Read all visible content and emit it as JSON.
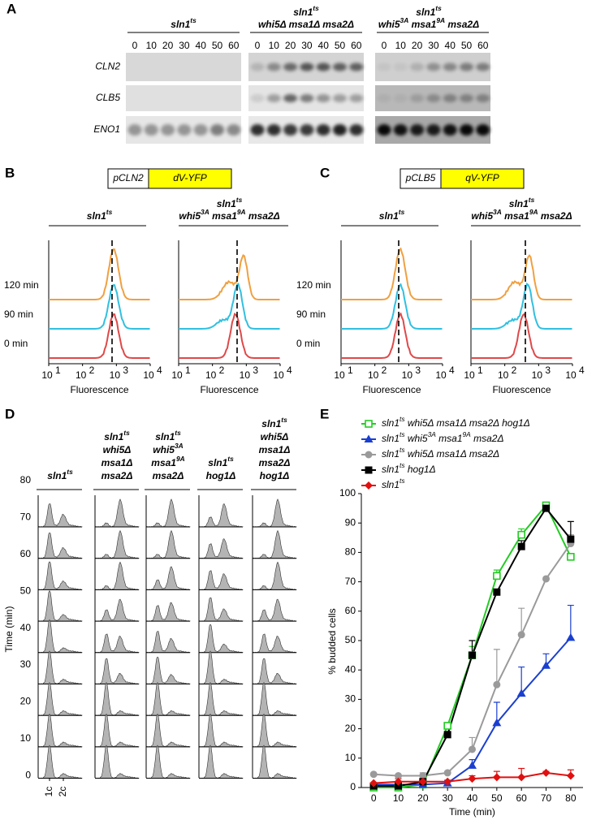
{
  "panel_a": {
    "letter": "A",
    "groups": [
      {
        "title": [
          "sln1ts"
        ],
        "times": [
          0,
          10,
          20,
          30,
          40,
          50,
          60
        ]
      },
      {
        "title": [
          "sln1ts",
          "whi5Δ msa1Δ msa2Δ"
        ],
        "times": [
          0,
          10,
          20,
          30,
          40,
          50,
          60
        ]
      },
      {
        "title": [
          "sln1ts",
          "whi53A msa19A msa2Δ"
        ],
        "times": [
          0,
          10,
          20,
          30,
          40,
          50,
          60
        ]
      }
    ],
    "rows": [
      "CLN2",
      "CLB5",
      "ENO1"
    ]
  },
  "panel_b": {
    "letter": "B",
    "promoter": "pCLN2",
    "reporter": "dV-YFP",
    "plots": [
      {
        "title": [
          "sln1ts"
        ]
      },
      {
        "title": [
          "sln1ts",
          "whi53A msa19A msa2Δ"
        ]
      }
    ],
    "time_labels": [
      "120 min",
      "90 min",
      "0 min"
    ],
    "x_ticks": [
      {
        "base": "10",
        "exp": "1"
      },
      {
        "base": "10",
        "exp": "2"
      },
      {
        "base": "10",
        "exp": "3"
      },
      {
        "base": "10",
        "exp": "4"
      }
    ],
    "x_label": "Fluorescence"
  },
  "panel_c": {
    "letter": "C",
    "promoter": "pCLB5",
    "reporter": "qV-YFP",
    "plots": [
      {
        "title": [
          "sln1ts"
        ]
      },
      {
        "title": [
          "sln1ts",
          "whi53A msa19A msa2Δ"
        ]
      }
    ],
    "time_labels": [
      "120 min",
      "90 min",
      "0 min"
    ],
    "x_ticks": [
      {
        "base": "10",
        "exp": "1"
      },
      {
        "base": "10",
        "exp": "2"
      },
      {
        "base": "10",
        "exp": "3"
      },
      {
        "base": "10",
        "exp": "4"
      }
    ],
    "x_label": "Fluorescence"
  },
  "panel_d": {
    "letter": "D",
    "columns": [
      {
        "title": [
          "sln1ts"
        ]
      },
      {
        "title": [
          "sln1ts",
          "whi5Δ",
          "msa1Δ",
          "msa2Δ"
        ]
      },
      {
        "title": [
          "sln1ts",
          "whi53A",
          "msa19A",
          "msa2Δ"
        ]
      },
      {
        "title": [
          "sln1ts",
          "hog1Δ"
        ]
      },
      {
        "title": [
          "sln1ts",
          "whi5Δ",
          "msa1Δ",
          "msa2Δ",
          "hog1Δ"
        ]
      }
    ],
    "time_labels": [
      80,
      70,
      60,
      50,
      40,
      30,
      20,
      10,
      0
    ],
    "y_label": "Time (min)",
    "x_marks": [
      "1c",
      "2c"
    ]
  },
  "panel_e": {
    "letter": "E"
  },
  "chart_data": {
    "type": "line",
    "x_label": "Time (min)",
    "y_label": "% budded cells",
    "x": [
      0,
      10,
      20,
      30,
      40,
      50,
      60,
      70,
      80
    ],
    "xlim": [
      -5,
      85
    ],
    "xticks": [
      0,
      10,
      20,
      30,
      40,
      50,
      60,
      70,
      80
    ],
    "ylim": [
      0,
      100
    ],
    "yticks": [
      0,
      10,
      20,
      30,
      40,
      50,
      60,
      70,
      80,
      90,
      100
    ],
    "series": [
      {
        "name": "sln1ts whi5Δ msa1Δ msa2Δ hog1Δ",
        "color": "#22cc22",
        "marker": "open-square",
        "values": [
          0,
          0,
          1,
          21,
          45,
          72,
          86,
          96,
          78.5
        ],
        "errors": [
          0.5,
          0.5,
          0.5,
          1,
          3,
          2,
          2,
          1,
          1
        ]
      },
      {
        "name": "sln1ts whi53A msa19A msa2Δ",
        "color": "#1a3fd0",
        "marker": "triangle",
        "values": [
          1,
          1,
          1,
          1.5,
          7.5,
          22,
          32,
          41.5,
          51
        ],
        "errors": [
          0,
          0,
          0.5,
          1,
          2,
          7,
          9,
          4,
          11
        ]
      },
      {
        "name": "sln1ts whi5Δ msa1Δ msa2Δ",
        "color": "#9a9a9a",
        "marker": "circle",
        "values": [
          4.5,
          4,
          4,
          5,
          13,
          35,
          52,
          71,
          83
        ],
        "errors": [
          0,
          0,
          1,
          0.5,
          4,
          12,
          9,
          0.5,
          3
        ]
      },
      {
        "name": "sln1ts hog1Δ",
        "color": "#000000",
        "marker": "square",
        "values": [
          0.5,
          0.5,
          2,
          18,
          45,
          66.5,
          82,
          95,
          84.5
        ],
        "errors": [
          0.5,
          0.5,
          1,
          1,
          5,
          1,
          2,
          1,
          6
        ]
      },
      {
        "name": "sln1ts",
        "color": "#e01010",
        "marker": "diamond",
        "values": [
          1.5,
          2,
          2,
          2,
          3,
          3.5,
          3.5,
          5,
          4
        ],
        "errors": [
          0,
          1,
          0.5,
          0,
          1,
          2,
          3,
          0.5,
          2
        ]
      }
    ]
  }
}
